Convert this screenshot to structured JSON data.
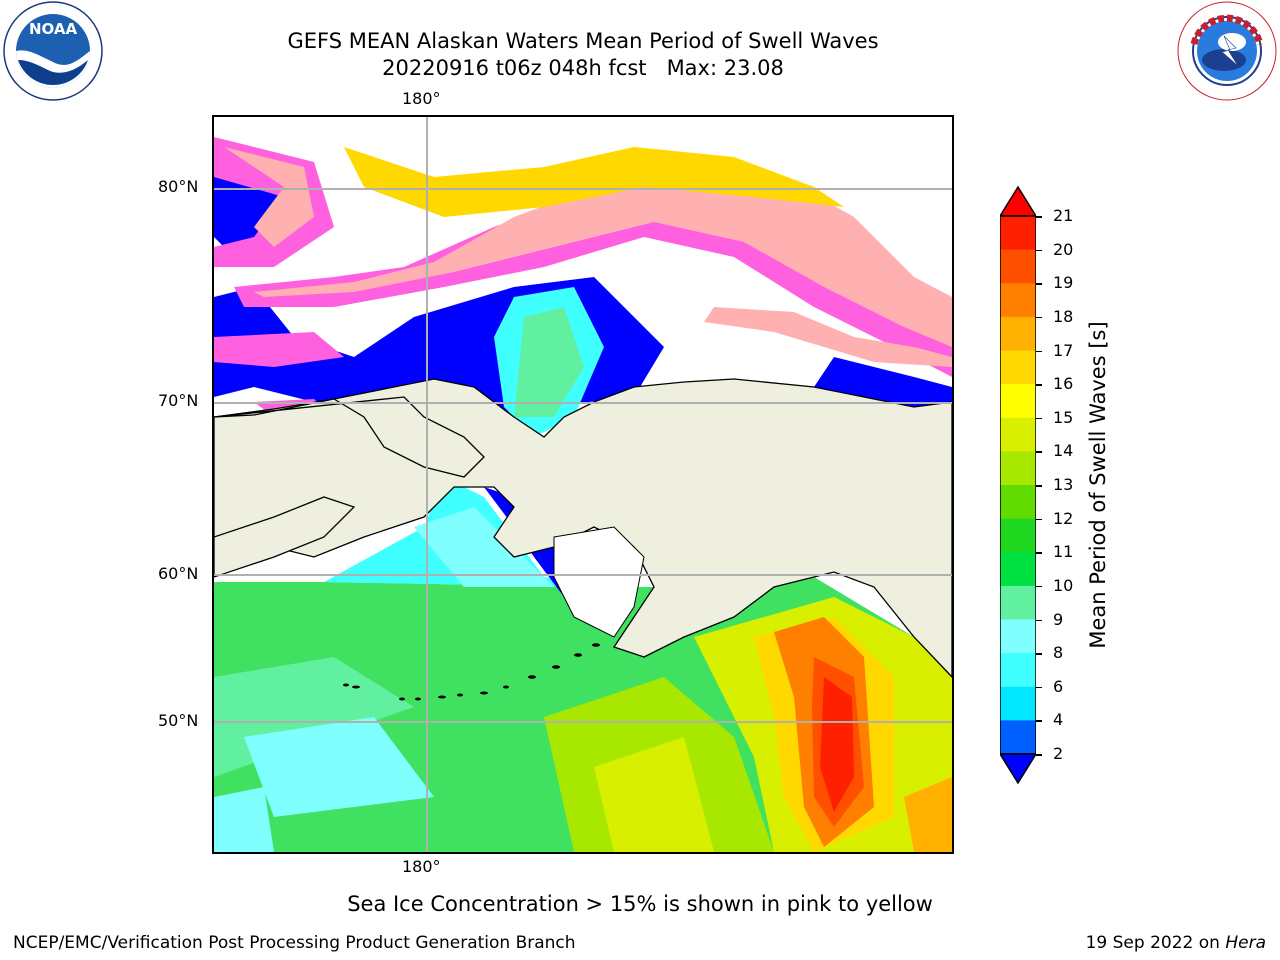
{
  "title": {
    "line1": "GEFS MEAN Alaskan Waters Mean Period of Swell Waves",
    "line2": "20220916 t06z 048h fcst   Max: 23.08"
  },
  "logos": {
    "left": {
      "text": "NOAA",
      "ring_text": "NATIONAL OCEANIC AND ATMOSPHERIC ADMINISTRATION · U.S. DEPARTMENT OF COMMERCE"
    },
    "right": {
      "ring_text": "NATIONAL WEATHER SERVICE"
    }
  },
  "map": {
    "lon_label_top": "180°",
    "lon_label_bottom": "180°",
    "lat_labels": [
      "80°N",
      "70°N",
      "60°N",
      "50°N"
    ]
  },
  "colorbar": {
    "label": "Mean Period of Swell Waves [s]",
    "ticks": [
      "21",
      "20",
      "19",
      "18",
      "17",
      "16",
      "15",
      "14",
      "13",
      "12",
      "11",
      "10",
      "9",
      "8",
      "6",
      "4",
      "2"
    ],
    "colors": [
      "#ff0000",
      "#ff2000",
      "#ff5000",
      "#ff8000",
      "#ffb000",
      "#ffd800",
      "#ffff00",
      "#d8f000",
      "#a8e800",
      "#60dc00",
      "#20d820",
      "#00e040",
      "#60f0a0",
      "#80ffff",
      "#40ffff",
      "#00e8ff",
      "#0060ff",
      "#0000ff"
    ]
  },
  "footer": {
    "note": "Sea Ice Concentration > 15% is shown in pink to yellow",
    "credit": "NCEP/EMC/Verification Post Processing Product Generation Branch",
    "date": "19 Sep 2022 on",
    "machine": "Hera"
  }
}
